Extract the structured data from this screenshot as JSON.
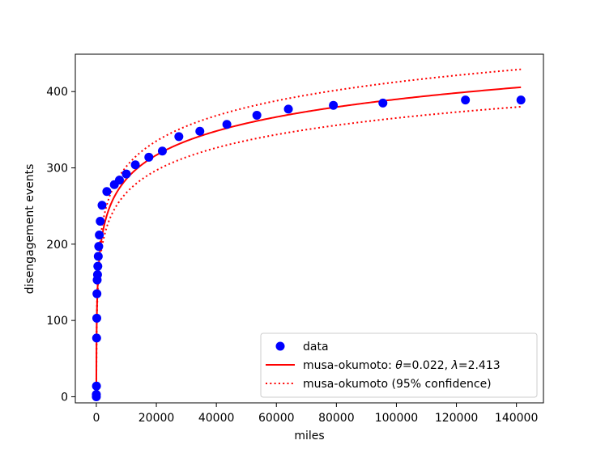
{
  "chart_data": {
    "type": "scatter",
    "title": "",
    "xlabel": "miles",
    "ylabel": "disengagement events",
    "xlim": [
      -7000,
      149000
    ],
    "ylim": [
      -8,
      449
    ],
    "xticks": [
      0,
      20000,
      40000,
      60000,
      80000,
      100000,
      120000,
      140000
    ],
    "xtick_labels": [
      "0",
      "20000",
      "40000",
      "60000",
      "80000",
      "100000",
      "120000",
      "140000"
    ],
    "yticks": [
      0,
      100,
      200,
      300,
      400
    ],
    "ytick_labels": [
      "0",
      "100",
      "200",
      "300",
      "400"
    ],
    "grid": false,
    "legend_position": "lower-right",
    "legend": {
      "data": "data",
      "fit_prefix": "musa-okumoto: ",
      "theta_symbol": "θ",
      "theta_value": "=0.022, ",
      "lambda_symbol": "λ",
      "lambda_value": "=2.413",
      "confidence": "musa-okumoto (95% confidence)"
    },
    "colors": {
      "data": "#0000ff",
      "fit": "#ff0000"
    },
    "model": {
      "theta": 0.022,
      "lambda": 2.413,
      "upper_factor": 1.058,
      "lower_factor": 0.937
    },
    "series": [
      {
        "kind": "points",
        "x": [
          0,
          0,
          50,
          100,
          150,
          200,
          280,
          400,
          500,
          650,
          800,
          1000,
          1300,
          1900,
          3500,
          6000,
          7700,
          10000,
          13000,
          17500,
          22000,
          27500,
          34500,
          43500,
          53500,
          64000,
          79000,
          95500,
          123000,
          141500
        ],
        "y": [
          0,
          3,
          14,
          77,
          103,
          135,
          153,
          160,
          171,
          184,
          197,
          212,
          230,
          251,
          269,
          278,
          284,
          292,
          304,
          314,
          322,
          341,
          348,
          357,
          369,
          377,
          382,
          385,
          389,
          389
        ]
      },
      {
        "kind": "fit",
        "x_range": [
          0,
          141500
        ]
      },
      {
        "kind": "confidence",
        "x_range": [
          0,
          141500
        ]
      }
    ]
  }
}
